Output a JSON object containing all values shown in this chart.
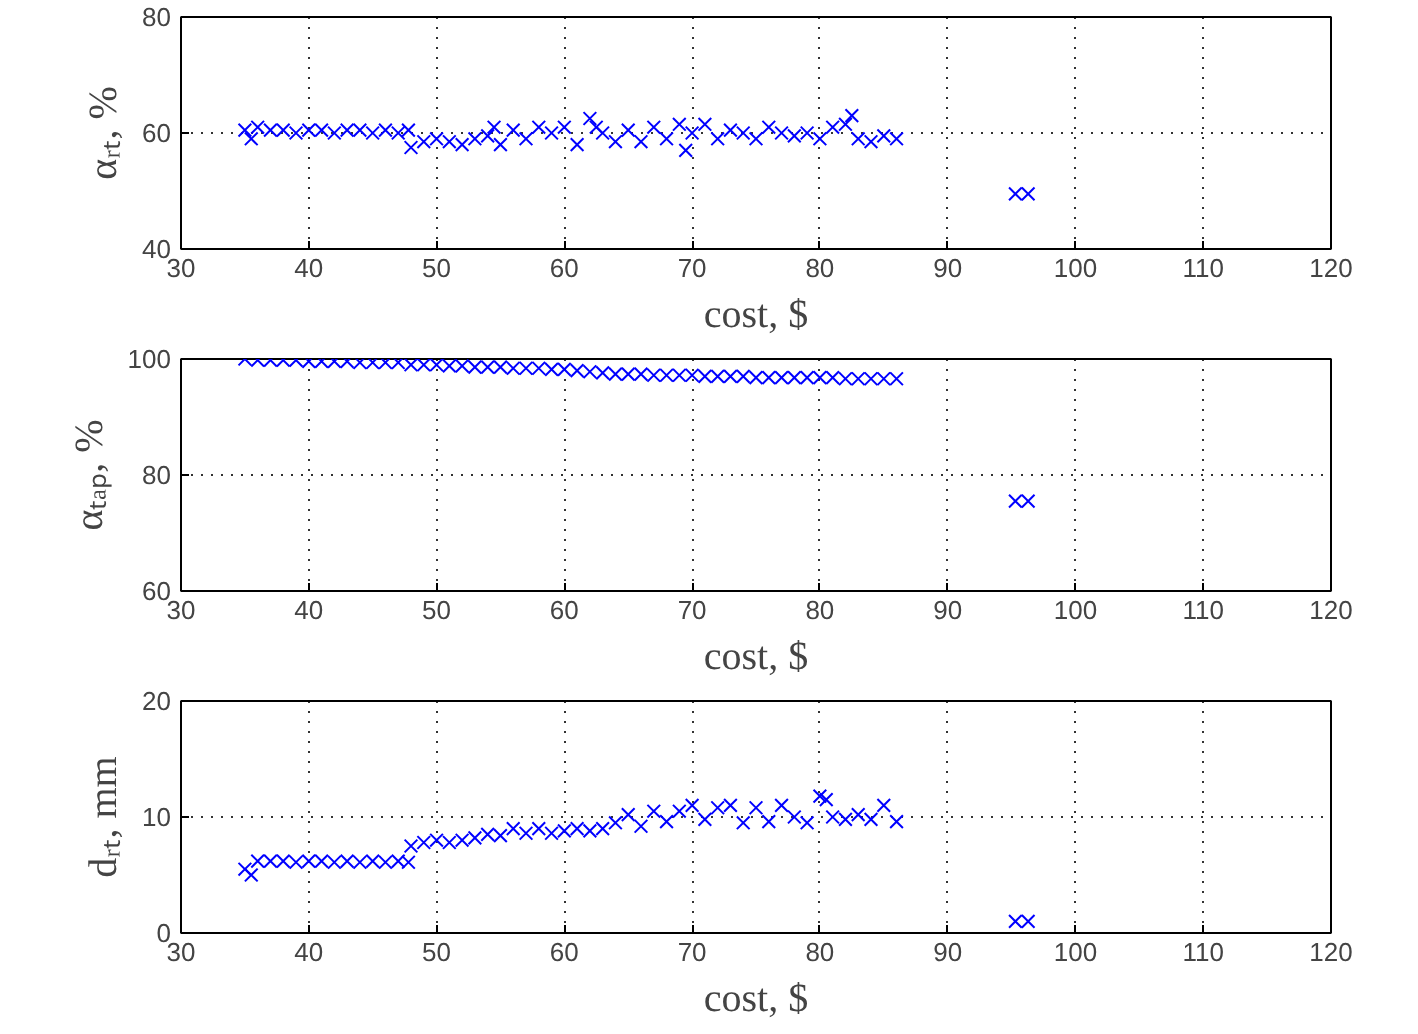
{
  "chart_data": [
    {
      "type": "scatter",
      "xlabel": "cost, $",
      "ylabel": "αᵣₜ, %",
      "xlim": [
        30,
        120
      ],
      "xticks": [
        30,
        40,
        50,
        60,
        70,
        80,
        90,
        100,
        110,
        120
      ],
      "ylim": [
        40,
        80
      ],
      "yticks": [
        40,
        60,
        80
      ],
      "grid": true,
      "marker": "cross",
      "series": [
        {
          "color": "#0000ff",
          "x": [
            35,
            35.5,
            36,
            37,
            38,
            39,
            40,
            41,
            42,
            43,
            44,
            45,
            46,
            47,
            47.8,
            48,
            49,
            50,
            51,
            52,
            53,
            54,
            54.5,
            55,
            56,
            57,
            58,
            59,
            60,
            61,
            62,
            62.5,
            63,
            64,
            65,
            66,
            67,
            68,
            69,
            69.5,
            70,
            71,
            72,
            73,
            74,
            75,
            76,
            77,
            78,
            79,
            80,
            81,
            82,
            82.5,
            83,
            84,
            85,
            86,
            95.3,
            96.3
          ],
          "values": [
            60.5,
            59,
            61,
            60.5,
            60.5,
            60,
            60.5,
            60.5,
            60,
            60.5,
            60.5,
            60,
            60.5,
            60,
            60.5,
            57.5,
            58.5,
            59,
            58.5,
            58,
            59,
            59.5,
            61,
            58,
            60.5,
            59,
            61,
            60,
            61,
            58,
            62.5,
            61,
            60,
            58.5,
            60.5,
            58.5,
            61,
            59,
            61.5,
            57,
            60,
            61.5,
            59,
            60.5,
            60,
            59,
            61,
            60,
            59.5,
            60,
            59,
            61,
            61.5,
            63,
            59,
            58.5,
            59.5,
            59,
            49.5,
            49.5
          ]
        }
      ]
    },
    {
      "type": "scatter",
      "xlabel": "cost, $",
      "ylabel": "αₜₐₚ, %",
      "xlim": [
        30,
        120
      ],
      "xticks": [
        30,
        40,
        50,
        60,
        70,
        80,
        90,
        100,
        110,
        120
      ],
      "ylim": [
        60,
        100
      ],
      "yticks": [
        60,
        80,
        100
      ],
      "grid": true,
      "marker": "cross",
      "series": [
        {
          "color": "#0000ff",
          "x": [
            35,
            36,
            37,
            38,
            39,
            40,
            41,
            42,
            43,
            44,
            45,
            46,
            47,
            48,
            49,
            50,
            51,
            52,
            53,
            54,
            55,
            56,
            57,
            58,
            59,
            60,
            61,
            62,
            63,
            64,
            65,
            66,
            67,
            68,
            69,
            70,
            71,
            72,
            73,
            74,
            75,
            76,
            77,
            78,
            79,
            80,
            81,
            82,
            83,
            84,
            85,
            86,
            95.3,
            96.3
          ],
          "values": [
            100,
            99.8,
            99.8,
            99.8,
            99.8,
            99.6,
            99.6,
            99.6,
            99.6,
            99.4,
            99.4,
            99.4,
            99.4,
            99,
            99,
            99,
            98.8,
            98.8,
            98.6,
            98.6,
            98.6,
            98.4,
            98.4,
            98.4,
            98.2,
            98.2,
            98,
            97.8,
            97.6,
            97.4,
            97.4,
            97.4,
            97.2,
            97.2,
            97.2,
            97.2,
            97,
            97,
            97,
            97,
            96.8,
            96.8,
            96.8,
            96.8,
            96.8,
            96.8,
            96.8,
            96.6,
            96.6,
            96.6,
            96.6,
            96.6,
            75.5,
            75.5
          ]
        }
      ]
    },
    {
      "type": "scatter",
      "xlabel": "cost, $",
      "ylabel": "dᵣₜ, mm",
      "xlim": [
        30,
        120
      ],
      "xticks": [
        30,
        40,
        50,
        60,
        70,
        80,
        90,
        100,
        110,
        120
      ],
      "ylim": [
        0,
        20
      ],
      "yticks": [
        0,
        10,
        20
      ],
      "grid": true,
      "marker": "cross",
      "series": [
        {
          "color": "#0000ff",
          "x": [
            35,
            35.5,
            36,
            37,
            38,
            39,
            40,
            41,
            42,
            43,
            44,
            45,
            46,
            47,
            47.8,
            48,
            49,
            50,
            51,
            52,
            53,
            54,
            55,
            56,
            57,
            58,
            59,
            60,
            61,
            62,
            63,
            64,
            65,
            66,
            67,
            68,
            69,
            70,
            71,
            72,
            73,
            74,
            75,
            76,
            77,
            78,
            79,
            80,
            80.5,
            81,
            82,
            83,
            84,
            85,
            86,
            95.3,
            96.3
          ],
          "values": [
            5.5,
            5,
            6.2,
            6.2,
            6.2,
            6.1,
            6.2,
            6.2,
            6.1,
            6.2,
            6.1,
            6.2,
            6.1,
            6.2,
            6.1,
            7.5,
            7.8,
            8,
            7.8,
            8,
            8.2,
            8.5,
            8.4,
            9,
            8.6,
            9,
            8.6,
            8.8,
            9,
            8.8,
            9,
            9.5,
            10.2,
            9.2,
            10.5,
            9.6,
            10.5,
            11,
            9.8,
            10.8,
            11,
            9.5,
            10.8,
            9.6,
            11,
            10,
            9.5,
            11.8,
            11.5,
            10,
            9.8,
            10.2,
            9.8,
            11,
            9.6,
            1,
            1
          ]
        }
      ]
    }
  ]
}
